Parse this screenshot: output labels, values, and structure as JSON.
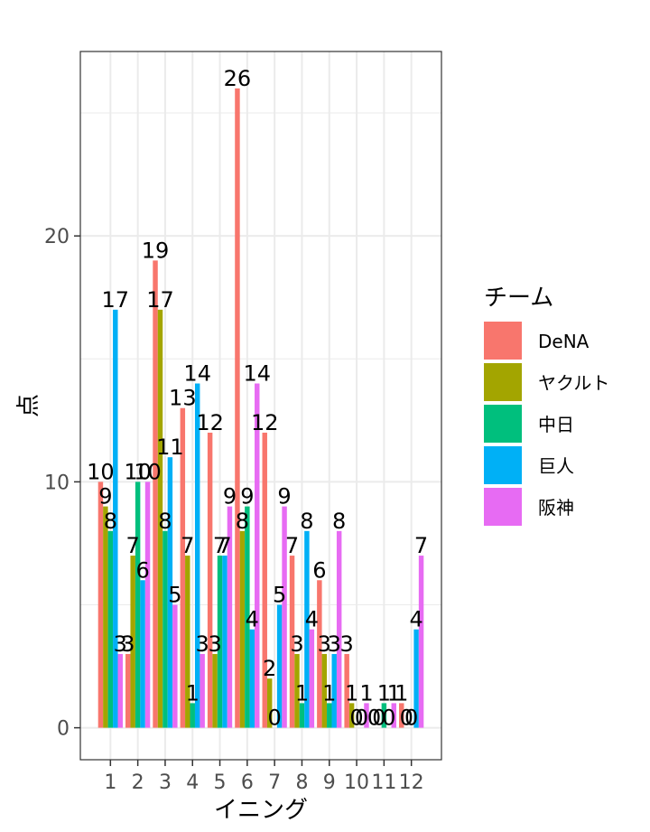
{
  "chart_data": {
    "type": "bar",
    "xlabel": "イニング",
    "ylabel": "点",
    "categories": [
      "1",
      "2",
      "3",
      "4",
      "5",
      "6",
      "7",
      "8",
      "9",
      "10",
      "11",
      "12"
    ],
    "ylim": [
      -1.3,
      27.5
    ],
    "yticks": [
      0,
      10,
      20
    ],
    "grid": true,
    "legend": {
      "title": "チーム",
      "position": "right"
    },
    "series": [
      {
        "name": "DeNA",
        "color": "#F8766D",
        "values": [
          10,
          3,
          19,
          13,
          12,
          26,
          12,
          7,
          6,
          3,
          0,
          1
        ]
      },
      {
        "name": "ヤクルト",
        "color": "#A3A500",
        "values": [
          9,
          7,
          17,
          7,
          3,
          8,
          2,
          3,
          3,
          1,
          0,
          0
        ]
      },
      {
        "name": "中日",
        "color": "#00BF7D",
        "values": [
          8,
          10,
          8,
          1,
          7,
          9,
          0,
          1,
          1,
          0,
          1,
          0
        ]
      },
      {
        "name": "巨人",
        "color": "#00B0F6",
        "values": [
          17,
          6,
          11,
          14,
          7,
          4,
          5,
          8,
          3,
          0,
          0,
          4
        ]
      },
      {
        "name": "阪神",
        "color": "#E76BF3",
        "values": [
          3,
          10,
          5,
          3,
          9,
          14,
          9,
          4,
          8,
          1,
          1,
          7
        ]
      }
    ]
  }
}
